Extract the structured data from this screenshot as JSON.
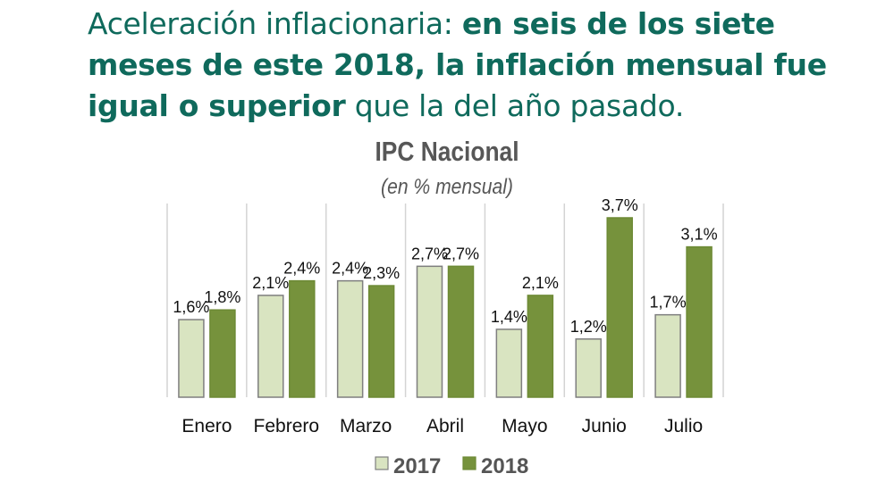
{
  "headline": {
    "part1": "Aceleración inflacionaria: ",
    "part2": "en seis de los siete meses de este 2018, la inflación mensual fue igual o superior",
    "part3": " que la del año pasado."
  },
  "chart_data": {
    "type": "bar",
    "title": "IPC Nacional",
    "subtitle": "(en % mensual)",
    "xlabel": "",
    "ylabel": "",
    "ylim": [
      0,
      3.7
    ],
    "grid": "vertical-separators",
    "legend_position": "bottom",
    "categories": [
      "Enero",
      "Febrero",
      "Marzo",
      "Abril",
      "Mayo",
      "Junio",
      "Julio"
    ],
    "series": [
      {
        "name": "2017",
        "color": "#d9e4c1",
        "values": [
          1.6,
          2.1,
          2.4,
          2.7,
          1.4,
          1.2,
          1.7
        ],
        "labels": [
          "1,6%",
          "2,1%",
          "2,4%",
          "2,7%",
          "1,4%",
          "1,2%",
          "1,7%"
        ]
      },
      {
        "name": "2018",
        "color": "#76923c",
        "values": [
          1.8,
          2.4,
          2.3,
          2.7,
          2.1,
          3.7,
          3.1
        ],
        "labels": [
          "1,8%",
          "2,4%",
          "2,3%",
          "2,7%",
          "2,1%",
          "3,7%",
          "3,1%"
        ]
      }
    ]
  }
}
